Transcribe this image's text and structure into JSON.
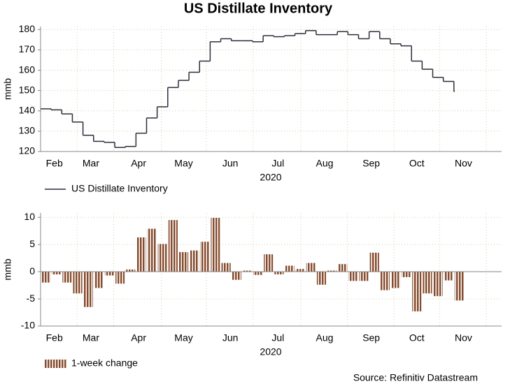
{
  "chart_data": [
    {
      "type": "line",
      "title": "US Distillate Inventory",
      "ylabel": "mmb",
      "xlabel": "2020",
      "categories": [
        null,
        null,
        null,
        null,
        null,
        null,
        null,
        null,
        null,
        null,
        null,
        null,
        null,
        null,
        null,
        null,
        null,
        null,
        null,
        null,
        null,
        null,
        null,
        null,
        null,
        null,
        null,
        null,
        null,
        null,
        null,
        null,
        null,
        null,
        null,
        null,
        null,
        null,
        null,
        null
      ],
      "series": [
        {
          "name": "US Distillate Inventory",
          "color": "#2b2f3a",
          "values": [
            141,
            140.5,
            138.5,
            134.5,
            128,
            125,
            124.5,
            122,
            122.5,
            129,
            136.5,
            142,
            151.5,
            155,
            159,
            164.5,
            174,
            175.5,
            174.5,
            174.5,
            174,
            177,
            176.5,
            177,
            178,
            179.5,
            177.5,
            177.5,
            179,
            177.5,
            175.5,
            179,
            175.5,
            173,
            172,
            164.5,
            160.5,
            156.5,
            154.5,
            149.5
          ]
        }
      ],
      "xlim": [
        0,
        43.5
      ],
      "ylim": [
        120,
        181.5
      ],
      "yticks": [
        120,
        130,
        140,
        150,
        160,
        170,
        180
      ],
      "xticks": [
        {
          "value": 1.3,
          "label": "Feb"
        },
        {
          "value": 4.75,
          "label": "Mar"
        },
        {
          "value": 9.25,
          "label": "Apr"
        },
        {
          "value": 13.5,
          "label": "May"
        },
        {
          "value": 17.9,
          "label": "Jun"
        },
        {
          "value": 22.4,
          "label": "Jul"
        },
        {
          "value": 26.8,
          "label": "Aug"
        },
        {
          "value": 31.2,
          "label": "Sep"
        },
        {
          "value": 35.5,
          "label": "Oct"
        },
        {
          "value": 39.9,
          "label": "Nov"
        }
      ],
      "grid": true
    },
    {
      "type": "bar",
      "ylabel": "mmb",
      "xlabel": "2020",
      "source": "Source: Refinitiv Datastream",
      "categories": [
        null,
        null,
        null,
        null,
        null,
        null,
        null,
        null,
        null,
        null,
        null,
        null,
        null,
        null,
        null,
        null,
        null,
        null,
        null,
        null,
        null,
        null,
        null,
        null,
        null,
        null,
        null,
        null,
        null,
        null,
        null,
        null,
        null,
        null,
        null,
        null,
        null,
        null,
        null,
        null
      ],
      "series": [
        {
          "name": "1-week change",
          "color": "#8b4a2b",
          "values": [
            -2,
            -0.5,
            -2,
            -4,
            -6.5,
            -3,
            -0.7,
            -2.2,
            0.4,
            6.3,
            7.9,
            5.1,
            9.5,
            3.6,
            3.9,
            5.5,
            9.9,
            1.6,
            -1.5,
            0.2,
            -0.6,
            3.2,
            -0.5,
            1.1,
            0.5,
            1.6,
            -2.4,
            0.2,
            1.4,
            -1.7,
            -1.7,
            3.5,
            -3.4,
            -3,
            -1,
            -7.3,
            -4,
            -4.5,
            -1.6,
            -5.3
          ]
        }
      ],
      "xlim": [
        0,
        43.5
      ],
      "ylim": [
        -10,
        10.8
      ],
      "yticks": [
        -10,
        -5,
        0,
        5,
        10
      ],
      "xticks": [
        {
          "value": 1.3,
          "label": "Feb"
        },
        {
          "value": 4.75,
          "label": "Mar"
        },
        {
          "value": 9.25,
          "label": "Apr"
        },
        {
          "value": 13.5,
          "label": "May"
        },
        {
          "value": 17.9,
          "label": "Jun"
        },
        {
          "value": 22.4,
          "label": "Jul"
        },
        {
          "value": 26.8,
          "label": "Aug"
        },
        {
          "value": 31.2,
          "label": "Sep"
        },
        {
          "value": 35.5,
          "label": "Oct"
        },
        {
          "value": 39.9,
          "label": "Nov"
        }
      ],
      "grid": true
    }
  ]
}
